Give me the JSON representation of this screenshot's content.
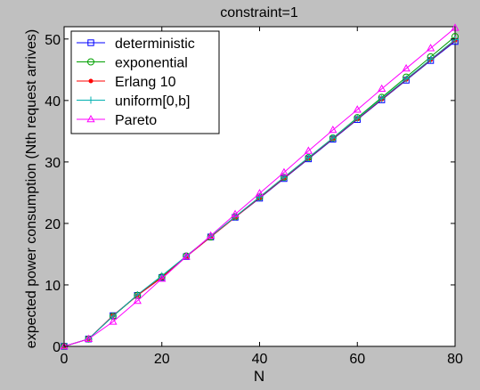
{
  "chart_data": {
    "type": "line",
    "title": "constraint=1",
    "xlabel": "N",
    "ylabel": "expected power consumption (Nth request arrives)",
    "xlim": [
      0,
      80
    ],
    "ylim": [
      0,
      52
    ],
    "xticks": [
      0,
      20,
      40,
      60,
      80
    ],
    "yticks": [
      0,
      10,
      20,
      30,
      40,
      50
    ],
    "grid": false,
    "legend_position": "top-left",
    "x": [
      0,
      5,
      10,
      15,
      20,
      25,
      30,
      35,
      40,
      45,
      50,
      55,
      60,
      65,
      70,
      75,
      80
    ],
    "series": [
      {
        "name": "deterministic",
        "color": "#0000ff",
        "marker": "square",
        "values": [
          0,
          1.2,
          5.0,
          8.3,
          11.2,
          14.6,
          17.8,
          21.0,
          24.1,
          27.3,
          30.5,
          33.7,
          36.9,
          40.1,
          43.3,
          46.5,
          49.6
        ]
      },
      {
        "name": "exponential",
        "color": "#00a000",
        "marker": "circle",
        "values": [
          0,
          1.2,
          4.9,
          8.3,
          11.3,
          14.7,
          17.8,
          21.1,
          24.3,
          27.5,
          30.7,
          33.9,
          37.2,
          40.5,
          43.8,
          47.1,
          50.4
        ]
      },
      {
        "name": "Erlang 10",
        "color": "#ff0000",
        "marker": "dot",
        "values": [
          0,
          1.2,
          5.0,
          8.3,
          11.2,
          14.6,
          17.8,
          21.0,
          24.2,
          27.4,
          30.6,
          33.8,
          37.0,
          40.2,
          43.4,
          46.6,
          49.8
        ]
      },
      {
        "name": "uniform[0,b]",
        "color": "#00b0b0",
        "marker": "plus",
        "values": [
          0,
          1.2,
          4.9,
          8.4,
          11.5,
          14.7,
          17.9,
          21.1,
          24.3,
          27.5,
          30.7,
          33.9,
          37.1,
          40.3,
          43.5,
          46.7,
          49.9
        ]
      },
      {
        "name": "Pareto",
        "color": "#ff00ff",
        "marker": "triangle",
        "values": [
          0,
          1.2,
          4.0,
          7.4,
          11.0,
          14.6,
          18.0,
          21.5,
          24.9,
          28.3,
          31.8,
          35.2,
          38.5,
          41.9,
          45.2,
          48.5,
          51.8
        ]
      }
    ]
  }
}
